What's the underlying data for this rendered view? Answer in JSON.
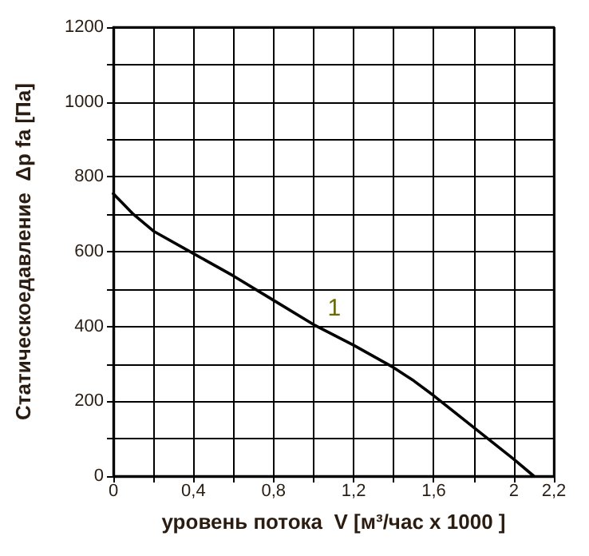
{
  "chart_data": {
    "type": "line",
    "xlabel": "уровень потока  V [м³/час x 1000 ]",
    "ylabel": "Статическоедавление  Δp fa [Па]",
    "x": [
      0,
      0.1,
      0.2,
      0.4,
      0.6,
      0.8,
      1.0,
      1.2,
      1.4,
      1.5,
      1.6,
      1.8,
      2.0,
      2.1
    ],
    "series": [
      {
        "name": "1",
        "color": "#000000",
        "values": [
          755,
          700,
          655,
          595,
          535,
          470,
          405,
          350,
          290,
          255,
          215,
          130,
          45,
          0
        ]
      }
    ],
    "xlim": [
      0,
      2.2
    ],
    "xticks": [
      0,
      {
        "value": 0.2,
        "label": null
      },
      {
        "value": 0.4,
        "label": "0,4"
      },
      {
        "value": 0.6,
        "label": null
      },
      {
        "value": 0.8,
        "label": "0,8"
      },
      {
        "value": 1.0,
        "label": null
      },
      {
        "value": 1.2,
        "label": "1,2"
      },
      {
        "value": 1.4,
        "label": null
      },
      {
        "value": 1.6,
        "label": "1,6"
      },
      {
        "value": 1.8,
        "label": null
      },
      2,
      {
        "value": 2.2,
        "label": "2,2"
      }
    ],
    "ylim": [
      0,
      1200
    ],
    "yticks": [
      0,
      {
        "value": 100,
        "label": null
      },
      200,
      {
        "value": 300,
        "label": null
      },
      400,
      {
        "value": 500,
        "label": null
      },
      600,
      {
        "value": 700,
        "label": null
      },
      800,
      {
        "value": 900,
        "label": null
      },
      1000,
      {
        "value": 1100,
        "label": null
      },
      1200
    ],
    "grid": true,
    "marker": "none",
    "line_style": "solid"
  }
}
